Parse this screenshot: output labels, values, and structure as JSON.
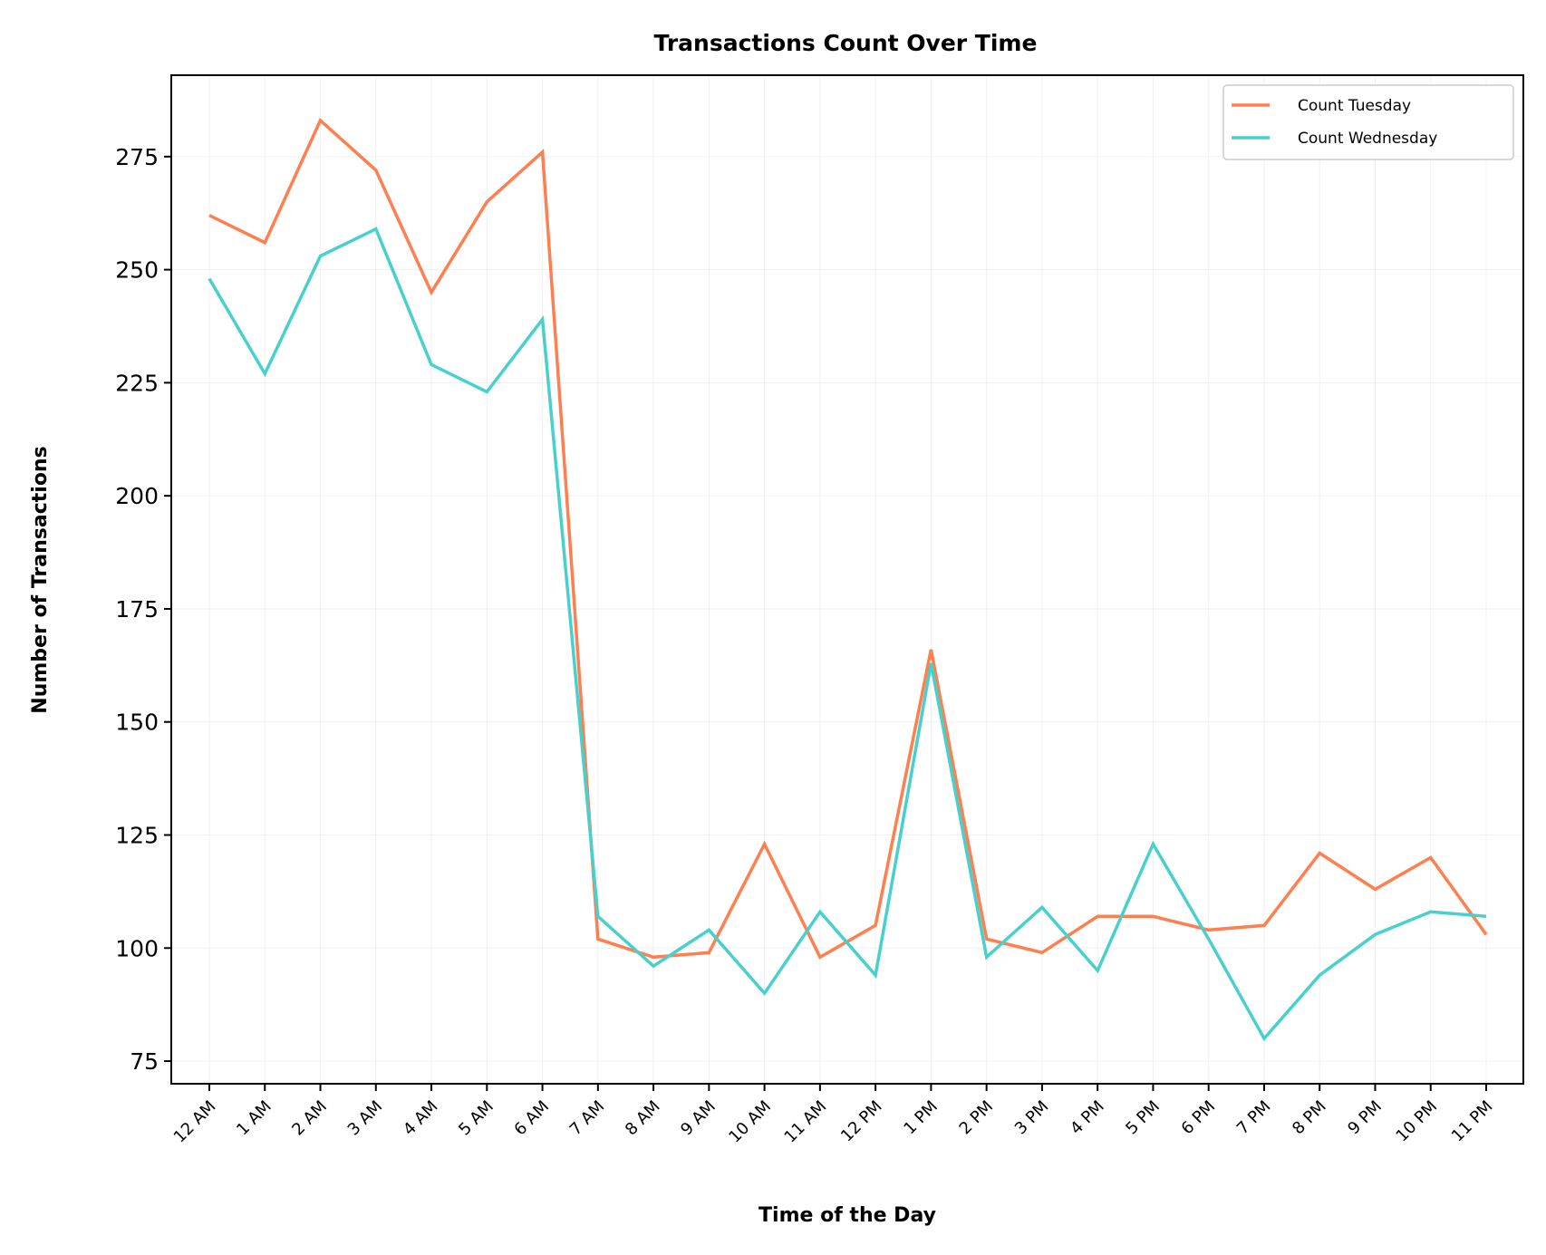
{
  "chart_data": {
    "type": "line",
    "title": "Transactions Count Over Time",
    "xlabel": "Time of the Day",
    "ylabel": "Number of Transactions",
    "categories": [
      "12 AM",
      "1 AM",
      "2 AM",
      "3 AM",
      "4 AM",
      "5 AM",
      "6 AM",
      "7 AM",
      "8 AM",
      "9 AM",
      "10 AM",
      "11 AM",
      "12 PM",
      "1 PM",
      "2 PM",
      "3 PM",
      "4 PM",
      "5 PM",
      "6 PM",
      "7 PM",
      "8 PM",
      "9 PM",
      "10 PM",
      "11 PM"
    ],
    "ylim": [
      70,
      293
    ],
    "yticks": [
      75,
      100,
      125,
      150,
      175,
      200,
      225,
      250,
      275
    ],
    "grid": true,
    "legend_position": "top-right",
    "series": [
      {
        "name": "Count Tuesday",
        "color": "#FF7F50",
        "values": [
          262,
          256,
          283,
          272,
          245,
          265,
          276,
          102,
          98,
          99,
          123,
          98,
          105,
          166,
          102,
          99,
          107,
          107,
          104,
          105,
          121,
          113,
          120,
          103
        ]
      },
      {
        "name": "Count Wednesday",
        "color": "#48D1CC",
        "values": [
          248,
          227,
          253,
          259,
          229,
          223,
          239,
          107,
          96,
          104,
          90,
          108,
          94,
          163,
          98,
          109,
          95,
          123,
          102,
          80,
          94,
          103,
          108,
          107
        ]
      }
    ]
  }
}
